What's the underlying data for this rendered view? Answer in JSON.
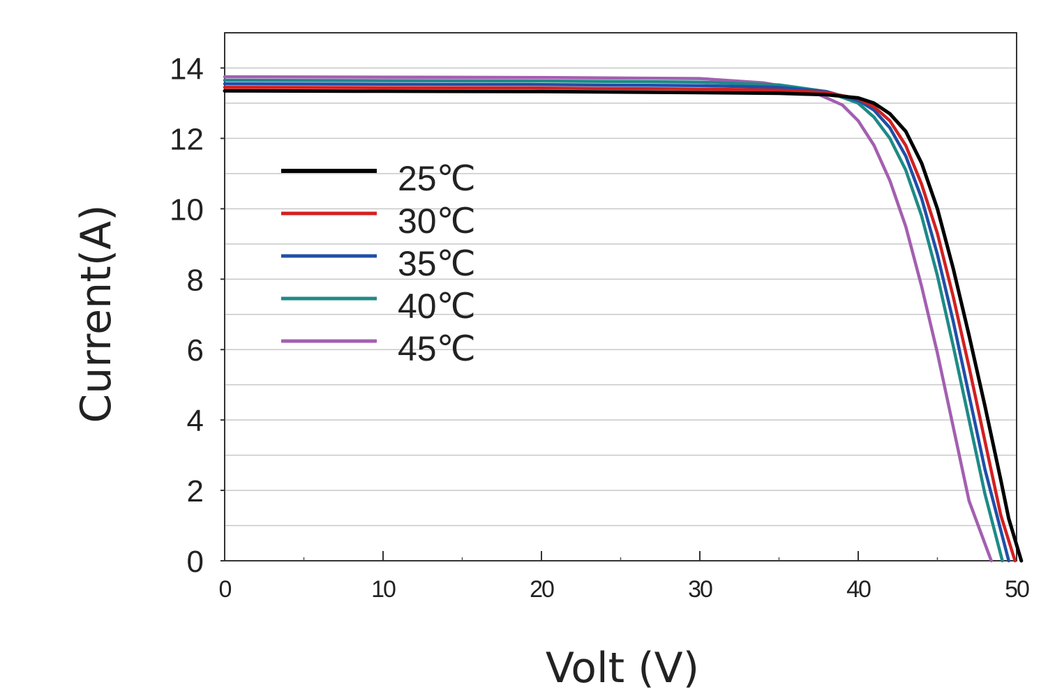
{
  "chart_data": {
    "type": "line",
    "xlabel": "Volt (V)",
    "ylabel": "Current(A)",
    "xlim": [
      0,
      50
    ],
    "ylim": [
      0,
      15
    ],
    "xticks": [
      "0",
      "10",
      "20",
      "30",
      "40",
      "50"
    ],
    "yticks": [
      "0",
      "2",
      "4",
      "6",
      "8",
      "10",
      "12",
      "14"
    ],
    "grid": "horizontal",
    "legend_position": "upper-left",
    "series": [
      {
        "name": "25℃",
        "color": "#000000",
        "x": [
          0,
          10,
          20,
          30,
          35,
          38,
          40,
          41,
          42,
          43,
          44,
          45,
          46,
          47,
          48,
          49,
          49.5,
          50.3
        ],
        "y": [
          13.35,
          13.34,
          13.33,
          13.3,
          13.28,
          13.24,
          13.15,
          13.0,
          12.7,
          12.2,
          11.3,
          10.0,
          8.3,
          6.4,
          4.4,
          2.3,
          1.2,
          0
        ]
      },
      {
        "name": "30℃",
        "color": "#d22020",
        "x": [
          0,
          10,
          20,
          30,
          35,
          38,
          40,
          41,
          42,
          43,
          44,
          45,
          46,
          47,
          48,
          49.0,
          49.9
        ],
        "y": [
          13.45,
          13.44,
          13.43,
          13.4,
          13.37,
          13.3,
          13.13,
          12.9,
          12.5,
          11.8,
          10.7,
          9.3,
          7.5,
          5.5,
          3.4,
          1.3,
          0
        ]
      },
      {
        "name": "35℃",
        "color": "#1f4fa8",
        "x": [
          0,
          10,
          20,
          30,
          35,
          38,
          40,
          41,
          42,
          43,
          44,
          45,
          46,
          47,
          48,
          49.5
        ],
        "y": [
          13.55,
          13.54,
          13.53,
          13.5,
          13.45,
          13.33,
          13.08,
          12.8,
          12.3,
          11.5,
          10.3,
          8.7,
          6.8,
          4.7,
          2.6,
          0
        ]
      },
      {
        "name": "40℃",
        "color": "#1e8a86",
        "x": [
          0,
          10,
          20,
          30,
          35,
          38,
          40,
          41,
          42,
          43,
          44,
          45,
          46,
          47,
          48,
          49.1
        ],
        "y": [
          13.65,
          13.64,
          13.63,
          13.6,
          13.52,
          13.33,
          13.0,
          12.6,
          12.0,
          11.1,
          9.8,
          8.1,
          6.1,
          4.0,
          1.9,
          0
        ]
      },
      {
        "name": "45℃",
        "color": "#a35fb0",
        "x": [
          0,
          10,
          20,
          30,
          34,
          37,
          39,
          40,
          41,
          42,
          43,
          44,
          45,
          46,
          47,
          48.4
        ],
        "y": [
          13.75,
          13.74,
          13.73,
          13.7,
          13.58,
          13.35,
          12.95,
          12.5,
          11.8,
          10.8,
          9.5,
          7.8,
          5.9,
          3.8,
          1.7,
          0
        ]
      }
    ]
  }
}
